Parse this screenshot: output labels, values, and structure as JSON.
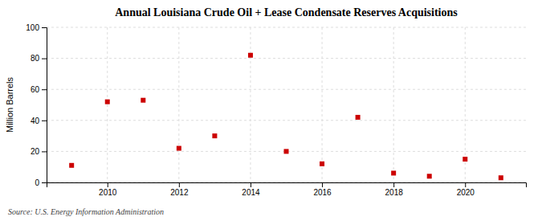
{
  "chart_data": {
    "type": "scatter",
    "title": "Annual Louisiana Crude Oil + Lease Condensate Reserves Acquisitions",
    "y_label": "Million Barrels",
    "source": "Source: U.S. Energy Information Administration",
    "x": [
      2009,
      2010,
      2011,
      2012,
      2013,
      2014,
      2015,
      2016,
      2017,
      2018,
      2019,
      2020,
      2021
    ],
    "values": [
      11,
      52,
      53,
      22,
      30,
      82,
      20,
      12,
      42,
      6,
      4,
      15,
      3
    ],
    "color": "#cc0000",
    "marker": "square",
    "xlim": [
      2008.3,
      2021.7
    ],
    "xticks": [
      2010,
      2012,
      2014,
      2016,
      2018,
      2020
    ],
    "ylim": [
      0,
      100
    ],
    "yticks": [
      0,
      20,
      40,
      60,
      80,
      100
    ],
    "grid": true
  }
}
